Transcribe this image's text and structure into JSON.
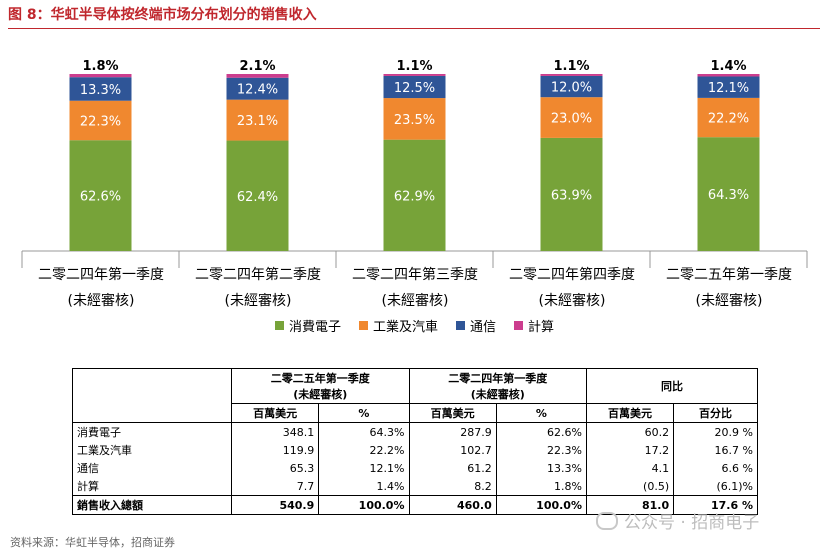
{
  "figure_title": "图 8：华虹半导体按终端市场分布划分的销售收入",
  "chart_data": {
    "type": "bar",
    "stacked": true,
    "percent": true,
    "categories": [
      [
        "二零二四年第一季度",
        "(未經審核)"
      ],
      [
        "二零二四年第二季度",
        "(未經審核)"
      ],
      [
        "二零二四年第三季度",
        "(未經審核)"
      ],
      [
        "二零二四年第四季度",
        "(未經審核)"
      ],
      [
        "二零二五年第一季度",
        "(未經審核)"
      ]
    ],
    "series": [
      {
        "name": "消費電子",
        "color": "#77a339",
        "values": [
          62.6,
          62.4,
          62.9,
          63.9,
          64.3
        ],
        "labels": [
          "62.6%",
          "62.4%",
          "62.9%",
          "63.9%",
          "64.3%"
        ]
      },
      {
        "name": "工業及汽車",
        "color": "#f0882f",
        "values": [
          22.3,
          23.1,
          23.5,
          23.0,
          22.2
        ],
        "labels": [
          "22.3%",
          "23.1%",
          "23.5%",
          "23.0%",
          "22.2%"
        ]
      },
      {
        "name": "通信",
        "color": "#2f5597",
        "values": [
          13.3,
          12.4,
          12.5,
          12.0,
          12.1
        ],
        "labels": [
          "13.3%",
          "12.4%",
          "12.5%",
          "12.0%",
          "12.1%"
        ]
      },
      {
        "name": "計算",
        "color": "#cc3d8e",
        "values": [
          1.8,
          2.1,
          1.1,
          1.1,
          1.4
        ],
        "labels": [
          "1.8%",
          "2.1%",
          "1.1%",
          "1.1%",
          "1.4%"
        ]
      }
    ],
    "ylim": [
      0,
      100
    ],
    "legend_position": "bottom"
  },
  "table": {
    "group_headers": [
      {
        "line1": "二零二五年第一季度",
        "line2": "(未經審核)"
      },
      {
        "line1": "二零二四年第一季度",
        "line2": "(未經審核)"
      },
      {
        "line1": "同比",
        "line2": ""
      }
    ],
    "sub_headers": [
      "百萬美元",
      "%",
      "百萬美元",
      "%",
      "百萬美元",
      "百分比"
    ],
    "rows": [
      {
        "label": "消費電子",
        "cells": [
          "348.1",
          "64.3%",
          "287.9",
          "62.6%",
          "60.2",
          "20.9 %"
        ]
      },
      {
        "label": "工業及汽車",
        "cells": [
          "119.9",
          "22.2%",
          "102.7",
          "22.3%",
          "17.2",
          "16.7 %"
        ]
      },
      {
        "label": "通信",
        "cells": [
          "65.3",
          "12.1%",
          "61.2",
          "13.3%",
          "4.1",
          "6.6 %"
        ]
      },
      {
        "label": "計算",
        "cells": [
          "7.7",
          "1.4%",
          "8.2",
          "1.8%",
          "(0.5)",
          "(6.1)%"
        ]
      }
    ],
    "total": {
      "label": "銷售收入總額",
      "cells": [
        "540.9",
        "100.0%",
        "460.0",
        "100.0%",
        "81.0",
        "17.6 %"
      ]
    }
  },
  "source": "资料来源：华虹半导体，招商证券",
  "watermark": "公众号 · 招商电子"
}
